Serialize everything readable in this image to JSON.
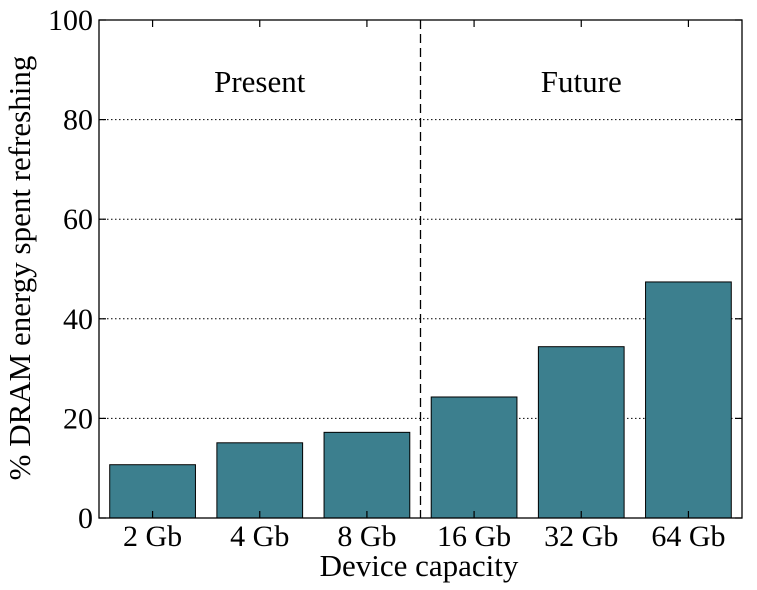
{
  "chart_data": {
    "type": "bar",
    "title": "",
    "xlabel": "Device capacity",
    "ylabel": "% DRAM energy spent refreshing",
    "categories": [
      "2 Gb",
      "4 Gb",
      "8 Gb",
      "16 Gb",
      "32 Gb",
      "64 Gb"
    ],
    "values": [
      10.7,
      15.1,
      17.2,
      24.3,
      34.4,
      47.4
    ],
    "ylim": [
      0,
      100
    ],
    "yticks": [
      "0",
      "20",
      "40",
      "60",
      "80",
      "100"
    ],
    "grid": "horizontal dotted",
    "bar_color": "#3c7f8e",
    "regions": [
      {
        "label": "Present",
        "categories": [
          "2 Gb",
          "4 Gb",
          "8 Gb"
        ]
      },
      {
        "label": "Future",
        "categories": [
          "16 Gb",
          "32 Gb",
          "64 Gb"
        ]
      }
    ],
    "divider": "dashed vertical line between 8 Gb and 16 Gb"
  }
}
